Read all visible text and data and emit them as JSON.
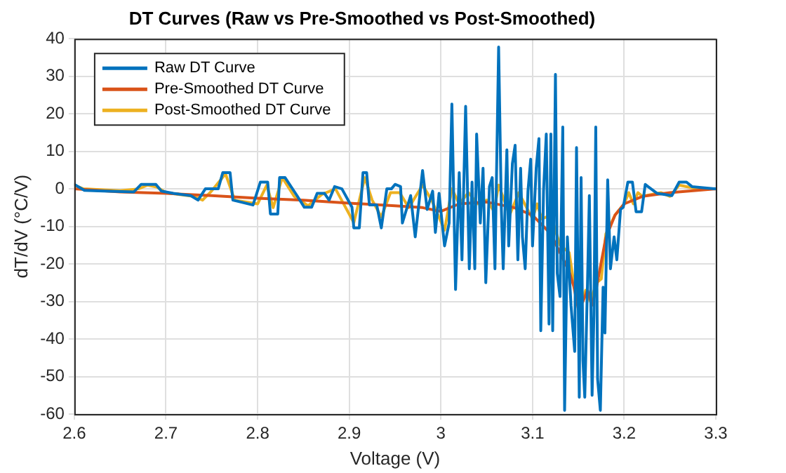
{
  "chart_data": {
    "type": "line",
    "title": "DT Curves (Raw vs Pre-Smoothed vs Post-Smoothed)",
    "xlabel": "Voltage (V)",
    "ylabel": "dT/dV (°C/V)",
    "xlim": [
      2.6,
      3.3
    ],
    "xticks": [
      2.6,
      2.7,
      2.8,
      2.9,
      3,
      3.1,
      3.2,
      3.3
    ],
    "ylim": [
      -60,
      40
    ],
    "yticks": [
      -60,
      -50,
      -40,
      -30,
      -20,
      -10,
      0,
      10,
      20,
      30,
      40
    ],
    "grid": true,
    "legend": "top left",
    "marker": "none",
    "line_style": "solid",
    "series": [
      {
        "name": "Raw DT Curve",
        "color": "#0072bd",
        "x": [
          2.6,
          2.611,
          2.632,
          2.665,
          2.673,
          2.689,
          2.695,
          2.708,
          2.727,
          2.735,
          2.743,
          2.757,
          2.762,
          2.77,
          2.773,
          2.795,
          2.803,
          2.811,
          2.814,
          2.822,
          2.824,
          2.83,
          2.843,
          2.851,
          2.859,
          2.865,
          2.873,
          2.878,
          2.884,
          2.892,
          2.903,
          2.905,
          2.911,
          2.915,
          2.919,
          2.922,
          2.93,
          2.935,
          2.941,
          2.946,
          2.95,
          2.956,
          2.958,
          2.967,
          2.972,
          2.98,
          2.985,
          2.991,
          2.994,
          2.998,
          3.004,
          3.009,
          3.012,
          3.016,
          3.02,
          3.023,
          3.027,
          3.031,
          3.034,
          3.037,
          3.039,
          3.043,
          3.046,
          3.049,
          3.053,
          3.056,
          3.059,
          3.063,
          3.066,
          3.068,
          3.072,
          3.074,
          3.078,
          3.081,
          3.084,
          3.087,
          3.089,
          3.092,
          3.095,
          3.098,
          3.1,
          3.104,
          3.107,
          3.109,
          3.112,
          3.115,
          3.118,
          3.12,
          3.122,
          3.125,
          3.127,
          3.13,
          3.133,
          3.135,
          3.138,
          3.142,
          3.146,
          3.148,
          3.151,
          3.153,
          3.155,
          3.157,
          3.16,
          3.162,
          3.165,
          3.167,
          3.169,
          3.171,
          3.174,
          3.177,
          3.179,
          3.182,
          3.185,
          3.189,
          3.192,
          3.196,
          3.199,
          3.204,
          3.209,
          3.213,
          3.219,
          3.223,
          3.226,
          3.236,
          3.252,
          3.26,
          3.268,
          3.274,
          3.3
        ],
        "values": [
          1.2,
          -0.4,
          -0.6,
          -0.8,
          1.2,
          1.2,
          -0.6,
          -1.2,
          -1.8,
          -3,
          0,
          0,
          4.3,
          4.3,
          -3,
          -4.3,
          1.8,
          1.8,
          -6.7,
          -6.7,
          3,
          3,
          -1.8,
          -4.9,
          -4.9,
          -1.2,
          -1.2,
          -3,
          0.6,
          0,
          -4.9,
          -10.4,
          -10.4,
          4.3,
          4.3,
          -4.3,
          -4.3,
          -10.4,
          0,
          0,
          1.2,
          0.6,
          -9.1,
          -1.8,
          -12.8,
          4.9,
          -5.5,
          -0.6,
          -11.6,
          -1.2,
          -15.2,
          -9.1,
          22.6,
          -26.8,
          4.3,
          -18.9,
          22,
          -21.3,
          1.8,
          -21.3,
          14.6,
          -9.1,
          5.5,
          -25,
          0.6,
          3,
          -21.3,
          37.8,
          -5.5,
          -21.3,
          10.4,
          -15.2,
          6.7,
          11.6,
          -18.9,
          5.5,
          -12.8,
          -21.3,
          -0.6,
          7.9,
          -15.2,
          5.5,
          13.4,
          -37.8,
          -0.6,
          14.6,
          -36,
          14.6,
          -37.8,
          30.5,
          -22.5,
          -28.7,
          16.5,
          -59,
          -12.8,
          -31.1,
          -43.3,
          11,
          -55.5,
          3,
          -45.7,
          -55.5,
          -25,
          -1.8,
          -55,
          -33.5,
          16.5,
          -50.6,
          -59,
          -26.2,
          -38.4,
          2.4,
          -21.3,
          -12.8,
          -18.9,
          -5.5,
          -4.9,
          1.8,
          1.8,
          -6.1,
          -6.1,
          1.2,
          0.6,
          -1.2,
          -1.8,
          1.8,
          1.8,
          0.6,
          0
        ]
      },
      {
        "name": "Pre-Smoothed DT Curve",
        "color": "#d95319",
        "x": [
          2.6,
          2.65,
          2.7,
          2.75,
          2.8,
          2.85,
          2.9,
          2.95,
          2.98,
          3,
          3.02,
          3.05,
          3.08,
          3.1,
          3.12,
          3.13,
          3.14,
          3.145,
          3.15,
          3.155,
          3.16,
          3.165,
          3.17,
          3.18,
          3.19,
          3.2,
          3.22,
          3.25,
          3.3
        ],
        "values": [
          0,
          -0.8,
          -1.2,
          -1.8,
          -2.5,
          -3,
          -3.8,
          -4.5,
          -5,
          -6,
          -4,
          -3.5,
          -5,
          -7,
          -12,
          -17,
          -22,
          -26,
          -32,
          -30,
          -27,
          -31,
          -26,
          -13,
          -7,
          -4,
          -2,
          -1,
          0
        ]
      },
      {
        "name": "Post-Smoothed DT Curve",
        "color": "#edb120",
        "x": [
          2.6,
          2.61,
          2.65,
          2.67,
          2.68,
          2.69,
          2.7,
          2.73,
          2.74,
          2.75,
          2.765,
          2.775,
          2.8,
          2.81,
          2.817,
          2.827,
          2.84,
          2.855,
          2.87,
          2.885,
          2.905,
          2.917,
          2.925,
          2.935,
          2.945,
          2.955,
          2.965,
          2.98,
          2.99,
          3.004,
          3.012,
          3.02,
          3.03,
          3.04,
          3.05,
          3.058,
          3.063,
          3.075,
          3.085,
          3.1,
          3.105,
          3.11,
          3.12,
          3.13,
          3.14,
          3.145,
          3.152,
          3.158,
          3.163,
          3.17,
          3.175,
          3.18,
          3.19,
          3.2,
          3.205,
          3.21,
          3.215,
          3.22,
          3.24,
          3.25,
          3.26,
          3.27,
          3.28,
          3.3
        ],
        "values": [
          1,
          0,
          -0.5,
          0,
          1,
          0.5,
          -1,
          -2,
          -3,
          -0.5,
          4,
          -3,
          -4,
          1,
          -5,
          3,
          -2,
          -4.5,
          -1.5,
          0,
          -9,
          3,
          -3,
          -7.5,
          -1,
          -1,
          -5,
          1,
          -3,
          -11,
          0,
          -4,
          -1,
          -4,
          -3,
          -6,
          1,
          -7,
          -1,
          -8,
          -4,
          -8,
          -7,
          -15,
          -17,
          -25,
          -31,
          -27,
          -30,
          -25,
          -24,
          -12,
          -7,
          -4,
          -1,
          -4,
          -1,
          -2,
          -1,
          -2,
          1,
          0.5,
          0,
          0
        ]
      }
    ]
  }
}
